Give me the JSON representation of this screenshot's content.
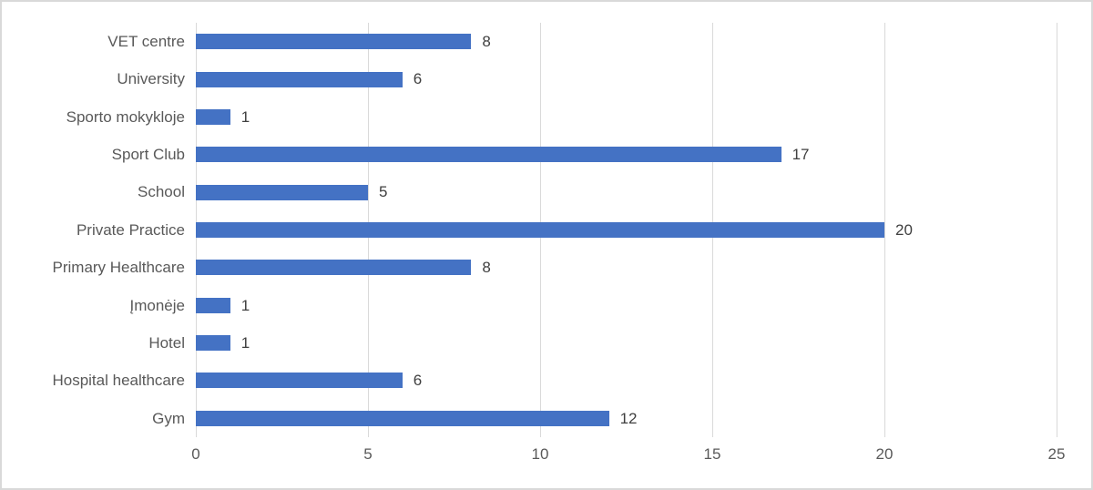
{
  "chart_data": {
    "type": "bar",
    "orientation": "horizontal",
    "title": "",
    "xlabel": "",
    "ylabel": "",
    "categories": [
      "VET centre",
      "University",
      "Sporto mokykloje",
      "Sport Club",
      "School",
      "Private Practice",
      "Primary Healthcare",
      "Įmonėje",
      "Hotel",
      "Hospital healthcare",
      "Gym"
    ],
    "values": [
      8,
      6,
      1,
      17,
      5,
      20,
      8,
      1,
      1,
      6,
      12
    ],
    "data_labels": [
      "8",
      "6",
      "1",
      "17",
      "5",
      "20",
      "8",
      "1",
      "1",
      "6",
      "12"
    ],
    "x_ticks": [
      0,
      5,
      10,
      15,
      20,
      25
    ],
    "x_tick_labels": [
      "0",
      "5",
      "10",
      "15",
      "20",
      "25"
    ],
    "xlim": [
      0,
      25
    ],
    "grid": "vertical-only",
    "legend": "none",
    "colors": {
      "bar": "#4472C4",
      "gridline": "#d9d9d9",
      "axis_line": "#d9d9d9",
      "category_label": "#595959",
      "tick_label": "#595959",
      "value_label": "#404040",
      "background": "#ffffff",
      "frame_border": "#d9d9d9"
    }
  }
}
